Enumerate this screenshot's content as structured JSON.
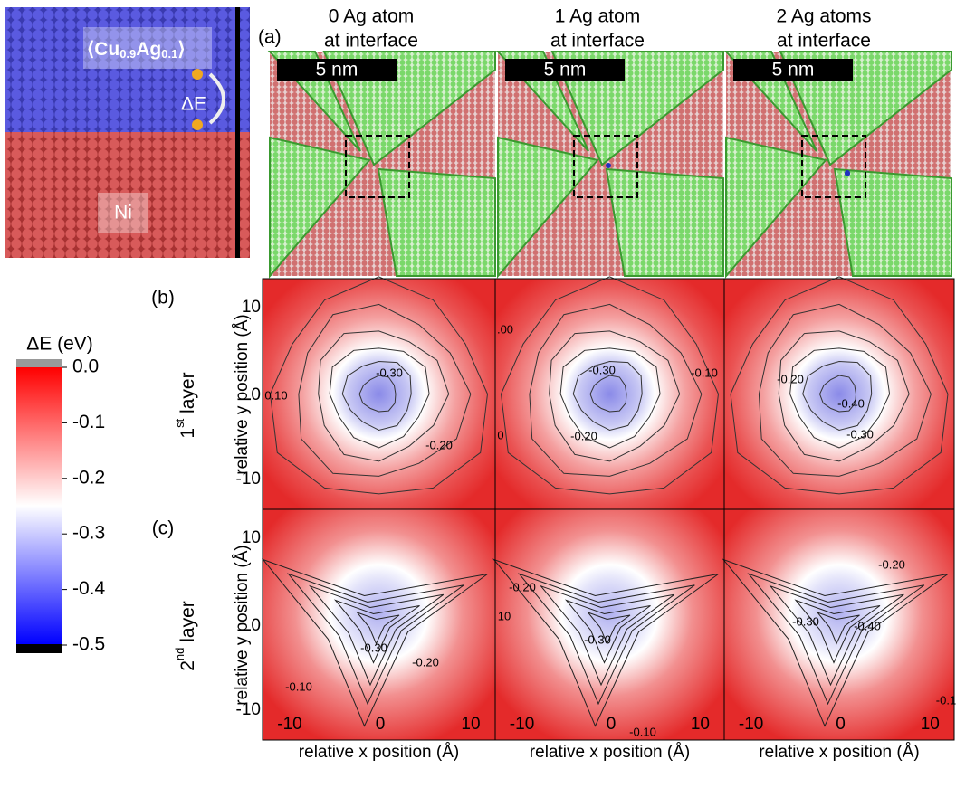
{
  "inset": {
    "composition_open": "⟨Cu",
    "composition_cu_sub": "0.9",
    "composition_ag": "Ag",
    "composition_ag_sub": "0.1",
    "composition_close": "⟩",
    "energy_label": "ΔE",
    "substrate_label": "Ni"
  },
  "panel_a": {
    "label": "(a)",
    "columns": [
      {
        "line1": "0 Ag atom",
        "line2": "at interface",
        "scale_bar": "5 nm"
      },
      {
        "line1": "1 Ag atom",
        "line2": "at interface",
        "scale_bar": "5 nm"
      },
      {
        "line1": "2 Ag atoms",
        "line2": "at interface",
        "scale_bar": "5 nm"
      }
    ]
  },
  "colorbar": {
    "title": "ΔE (eV)",
    "ticks": [
      "0.0",
      "-0.1",
      "-0.2",
      "-0.3",
      "-0.4",
      "-0.5"
    ]
  },
  "rows": [
    {
      "label": "(b)",
      "layer_number": "1",
      "layer_suffix": "st",
      "layer_word": " layer"
    },
    {
      "label": "(c)",
      "layer_number": "2",
      "layer_suffix": "nd",
      "layer_word": " layer"
    }
  ],
  "axes": {
    "x_label": "relative x position (Å)",
    "y_label": "relative y position (Å)",
    "x_ticks": [
      "-10",
      "0",
      "10"
    ],
    "y_ticks": [
      "10",
      "0",
      "-10"
    ]
  },
  "contour_labels": [
    [
      "-0.30",
      "-0.20",
      "0.10"
    ],
    [
      "-0.30",
      "-0.10",
      "-0.20",
      ".00",
      "0"
    ],
    [
      "-0.20",
      "-0.40",
      "-0.30"
    ],
    [
      "-0.30",
      "-0.20",
      "-0.10"
    ],
    [
      "-0.20",
      "-0.30",
      "-0.10",
      "10"
    ],
    [
      "-0.20",
      "-0.30",
      "-0.40",
      "-0.1"
    ]
  ]
}
